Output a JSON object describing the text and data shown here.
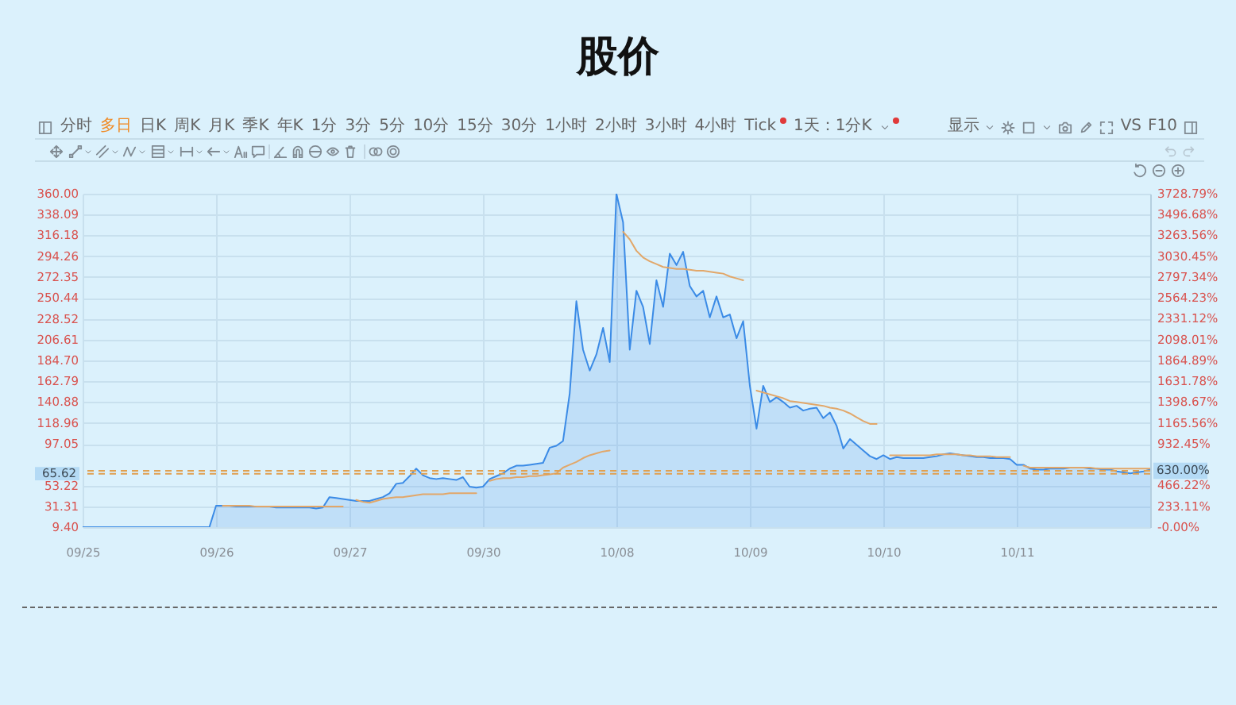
{
  "chart_data": {
    "type": "area",
    "title": "股价",
    "annotations": [
      "分时",
      "多日",
      "日K",
      "周K",
      "月K",
      "季K",
      "年K",
      "1分",
      "3分",
      "5分",
      "10分",
      "15分",
      "30分",
      "1小时",
      "2小时",
      "3小时",
      "4小时",
      "Tick",
      "1天：1分K",
      "显示",
      "VS",
      "F10"
    ],
    "categories": [
      "09/25",
      null,
      null,
      null,
      null,
      null,
      null,
      null,
      null,
      null,
      null,
      null,
      null,
      null,
      null,
      null,
      null,
      null,
      null,
      null,
      "09/26",
      null,
      null,
      null,
      null,
      null,
      null,
      null,
      null,
      null,
      null,
      null,
      null,
      null,
      null,
      null,
      null,
      null,
      null,
      null,
      "09/27",
      null,
      null,
      null,
      null,
      null,
      null,
      null,
      null,
      null,
      null,
      null,
      null,
      null,
      null,
      null,
      null,
      null,
      null,
      null,
      "09/30",
      null,
      null,
      null,
      null,
      null,
      null,
      null,
      null,
      null,
      null,
      null,
      null,
      null,
      null,
      null,
      null,
      null,
      null,
      null,
      "10/08",
      null,
      null,
      null,
      null,
      null,
      null,
      null,
      null,
      null,
      null,
      null,
      null,
      null,
      null,
      null,
      null,
      null,
      null,
      null,
      "10/09",
      null,
      null,
      null,
      null,
      null,
      null,
      null,
      null,
      null,
      null,
      null,
      null,
      null,
      null,
      null,
      null,
      null,
      null,
      null,
      "10/10",
      null,
      null,
      null,
      null,
      null,
      null,
      null,
      null,
      null,
      null,
      null,
      null,
      null,
      null,
      null,
      null,
      null,
      null,
      null,
      "10/11",
      null,
      null,
      null,
      null,
      null,
      null,
      null,
      null,
      null,
      null,
      null,
      null,
      null,
      null,
      null,
      null,
      null,
      null,
      null,
      null
    ],
    "ylim": [
      9.4,
      360
    ],
    "yticks": [
      {
        "value": 9.4,
        "label": "9.40"
      },
      31.31,
      53.22,
      97.05,
      118.96,
      140.88,
      162.79,
      {
        "value": 184.7,
        "label": "184.70"
      },
      206.61,
      228.52,
      250.44,
      272.35,
      294.26,
      316.18,
      338.09,
      {
        "value": 360,
        "label": "360.00"
      }
    ],
    "y2lim": [
      0,
      3728.79
    ],
    "y2ticks": [
      {
        "value": 0,
        "label": "-0.00%"
      },
      {
        "value": 233.11,
        "label": "233.11%"
      },
      {
        "value": 466.22,
        "label": "466.22%"
      },
      {
        "value": 932.45,
        "label": "932.45%"
      },
      {
        "value": 1165.56,
        "label": "1165.56%"
      },
      {
        "value": 1398.67,
        "label": "1398.67%"
      },
      {
        "value": 1631.78,
        "label": "1631.78%"
      },
      {
        "value": 1864.89,
        "label": "1864.89%"
      },
      {
        "value": 2098.01,
        "label": "2098.01%"
      },
      {
        "value": 2331.12,
        "label": "2331.12%"
      },
      {
        "value": 2564.23,
        "label": "2564.23%"
      },
      {
        "value": 2797.34,
        "label": "2797.34%"
      },
      {
        "value": 3030.45,
        "label": "3030.45%"
      },
      {
        "value": 3263.56,
        "label": "3263.56%"
      },
      {
        "value": 3496.68,
        "label": "3496.68%"
      },
      {
        "value": 3728.79,
        "label": "3728.79%"
      }
    ],
    "grid": true,
    "ref_lines": [
      {
        "axis": "y",
        "value": 65.62,
        "label": "65.62",
        "color": "#e0a050",
        "line_style": "dashed"
      },
      {
        "axis": "y2",
        "value": 630,
        "label": "630.00%",
        "color": "#e0a050",
        "line_style": "dashed"
      }
    ],
    "series": [
      {
        "color": "#3b8be6",
        "values": [
          9.4,
          9.4,
          9.4,
          9.4,
          9.4,
          9.4,
          9.4,
          9.4,
          9.4,
          9.4,
          9.4,
          9.4,
          9.4,
          9.4,
          9.4,
          9.4,
          9.4,
          9.4,
          9.4,
          9.4,
          32,
          32,
          32,
          31,
          31,
          31,
          31,
          31,
          31,
          30,
          30,
          30,
          30,
          30,
          30,
          29,
          30,
          41,
          40,
          39,
          38,
          37,
          37,
          37,
          39,
          41,
          45,
          55,
          56,
          63,
          71,
          64,
          61,
          60,
          61,
          60,
          59,
          62,
          52,
          51,
          52,
          60,
          63,
          66,
          71,
          74,
          74,
          75,
          76,
          77,
          93,
          95,
          100,
          150,
          247,
          196,
          174,
          191,
          219,
          183,
          360,
          330,
          196,
          258,
          241,
          202,
          269,
          241,
          297,
          285,
          299,
          263,
          252,
          258,
          230,
          252,
          230,
          233,
          208,
          226,
          158,
          113,
          158,
          141,
          146,
          141,
          135,
          137,
          132,
          134,
          135,
          124,
          130,
          116,
          92,
          102,
          96,
          90,
          84,
          81,
          85,
          81,
          83,
          82,
          82,
          82,
          82,
          83,
          84,
          86,
          87,
          86,
          85,
          84,
          83,
          83,
          82,
          82,
          82,
          81,
          75,
          75,
          71,
          70,
          70,
          71,
          71,
          71,
          72,
          72,
          72,
          71,
          71,
          70,
          70,
          68,
          67,
          66,
          67,
          68,
          70
        ]
      },
      {
        "type": "line",
        "color": "#e2a769",
        "values": [
          null,
          null,
          null,
          null,
          null,
          null,
          null,
          null,
          null,
          null,
          null,
          null,
          null,
          null,
          null,
          null,
          null,
          null,
          null,
          null,
          null,
          32,
          32,
          32,
          32,
          32,
          31,
          31,
          31,
          31,
          31,
          31,
          31,
          31,
          31,
          31,
          31,
          31,
          31,
          31,
          null,
          38,
          36,
          35,
          37,
          39,
          40,
          41,
          41,
          42,
          43,
          44,
          44,
          44,
          44,
          45,
          45,
          45,
          45,
          45,
          null,
          58,
          60,
          61,
          61,
          62,
          62,
          63,
          63,
          64,
          65,
          66,
          72,
          75,
          78,
          82,
          85,
          87,
          89,
          90,
          null,
          320,
          312,
          300,
          293,
          289,
          286,
          283,
          282,
          281,
          281,
          280,
          279,
          279,
          278,
          277,
          276,
          273,
          271,
          269,
          null,
          153,
          151,
          149,
          147,
          145,
          142,
          141,
          140,
          139,
          138,
          137,
          135,
          134,
          132,
          129,
          125,
          121,
          118,
          118,
          null,
          85,
          85,
          85,
          85,
          85,
          85,
          85,
          86,
          86,
          86,
          86,
          85,
          85,
          84,
          84,
          84,
          83,
          83,
          83,
          null,
          74,
          72,
          72,
          72,
          72,
          72,
          72,
          72,
          72,
          72,
          72,
          71,
          71,
          71,
          71,
          71,
          71,
          71,
          71,
          71
        ]
      }
    ]
  }
}
